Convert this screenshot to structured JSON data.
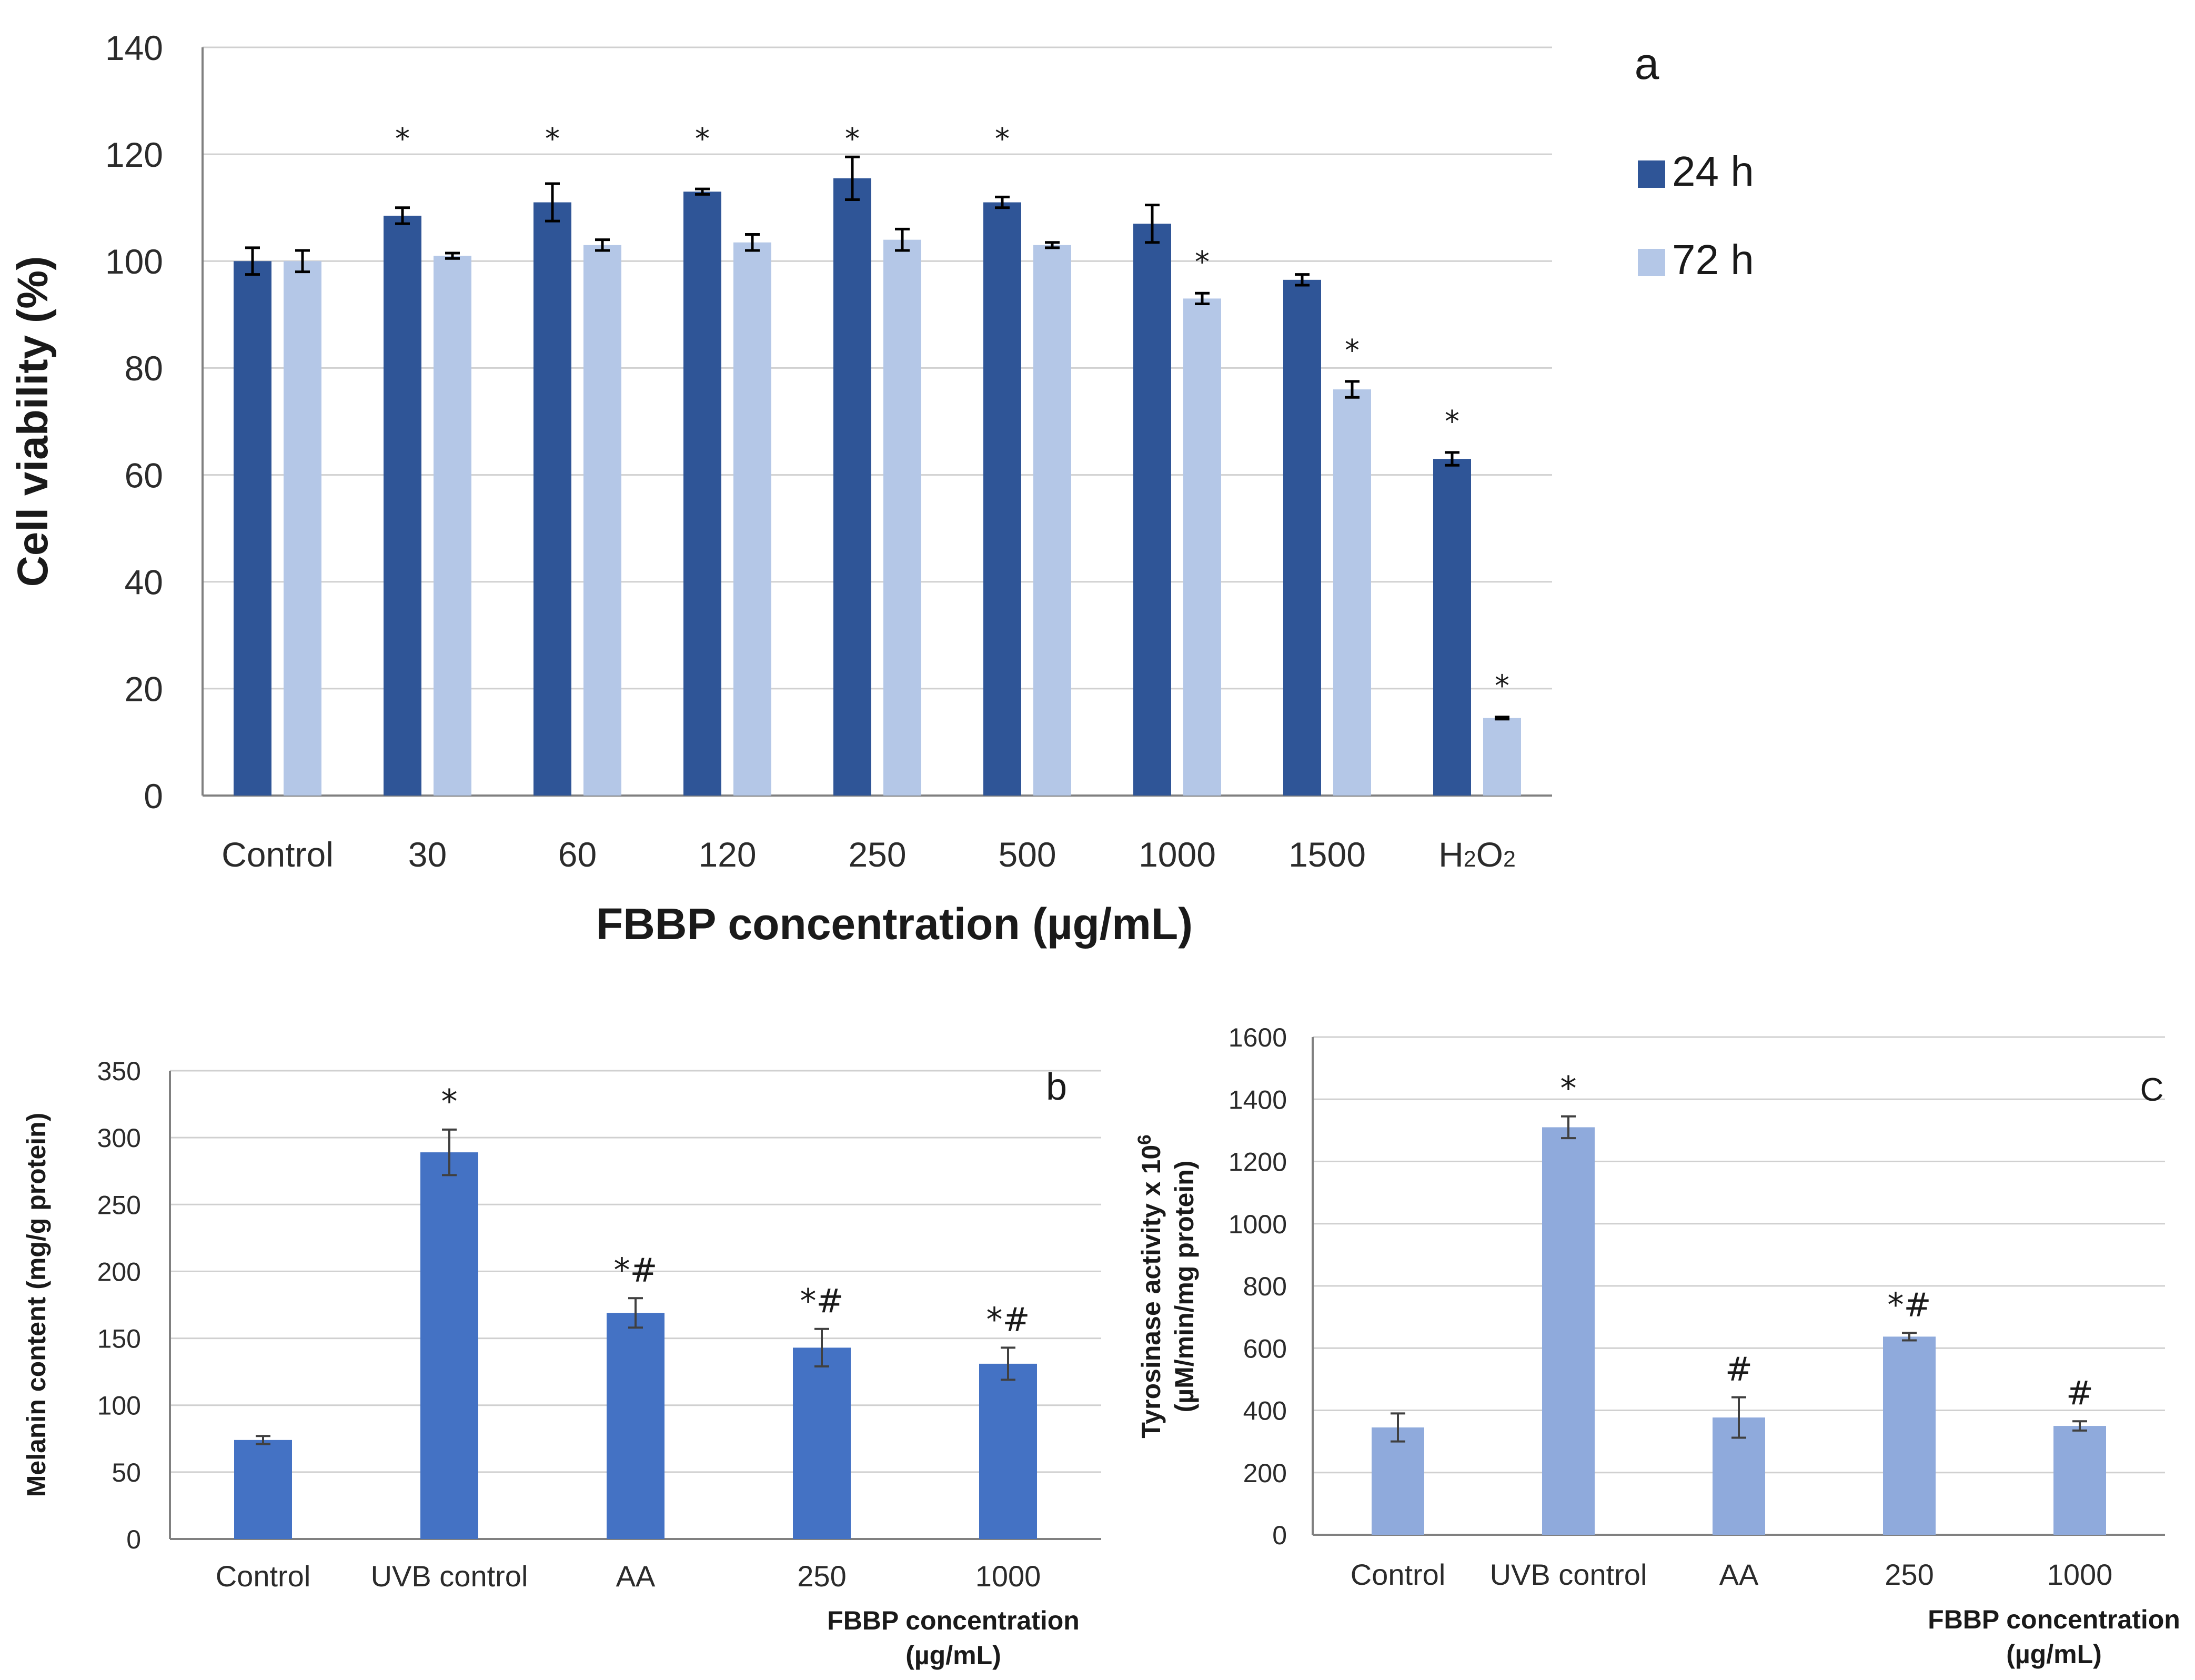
{
  "chart_data": [
    {
      "id": "a",
      "type": "bar",
      "panel_label": "a",
      "xlabel": "FBBP concentration (µg/mL)",
      "ylabel": "Cell viability (%)",
      "ylim": [
        0,
        140
      ],
      "yticks": [
        "0",
        "20",
        "40",
        "60",
        "80",
        "100",
        "120",
        "140"
      ],
      "grid": true,
      "legend_position": "right",
      "categories": [
        {
          "label": "Control"
        },
        {
          "label": "30"
        },
        {
          "label": "60"
        },
        {
          "label": "120"
        },
        {
          "label": "250"
        },
        {
          "label": "500"
        },
        {
          "label": "1000"
        },
        {
          "label": "1500"
        },
        {
          "label": "H",
          "sub1": "2",
          "mid": "O",
          "sub2": "2"
        }
      ],
      "series": [
        {
          "name": "24 h",
          "color": "#2f5597",
          "values": [
            100,
            108.5,
            111,
            113,
            115.5,
            111,
            107,
            96.5,
            63
          ],
          "errors": [
            2.5,
            1.5,
            3.5,
            0.5,
            4,
            1,
            3.5,
            1,
            1.2
          ],
          "markers": [
            "",
            "*",
            "*",
            "*",
            "*",
            "*",
            "",
            "",
            "*"
          ]
        },
        {
          "name": "72 h",
          "color": "#b4c7e7",
          "values": [
            100,
            101,
            103,
            103.5,
            104,
            103,
            93,
            76,
            14.5
          ],
          "errors": [
            2,
            0.5,
            1,
            1.5,
            2,
            0.5,
            1,
            1.5,
            0.2
          ],
          "markers": [
            "",
            "",
            "",
            "",
            "",
            "",
            "*",
            "*",
            "*"
          ]
        }
      ]
    },
    {
      "id": "b",
      "type": "bar",
      "panel_label": "b",
      "xlabel_lines": [
        "FBBP concentration",
        "(µg/mL)"
      ],
      "ylabel": "Melanin content (mg/g protein)",
      "ylim": [
        0,
        350
      ],
      "yticks": [
        "0",
        "50",
        "100",
        "150",
        "200",
        "250",
        "300",
        "350"
      ],
      "grid": true,
      "categories": [
        "Control",
        "UVB control",
        "AA",
        "250",
        "1000"
      ],
      "series": [
        {
          "name": "Melanin content",
          "color": "#4472c4",
          "values": [
            74,
            289,
            169,
            143,
            131
          ],
          "errors": [
            3,
            17,
            11,
            14,
            12
          ],
          "markers": [
            "",
            "*",
            "*#",
            "*#",
            "*#"
          ]
        }
      ]
    },
    {
      "id": "c",
      "type": "bar",
      "panel_label": "C",
      "xlabel_lines": [
        "FBBP concentration",
        "(µg/mL)"
      ],
      "ylabel_lines": [
        "Tyrosinase activity x 10",
        "(µM/min/mg protein)"
      ],
      "ylabel_sup": "6",
      "ylim": [
        0,
        1600
      ],
      "yticks": [
        "0",
        "200",
        "400",
        "600",
        "800",
        "1000",
        "1200",
        "1400",
        "1600"
      ],
      "grid": true,
      "categories": [
        "Control",
        "UVB control",
        "AA",
        "250",
        "1000"
      ],
      "series": [
        {
          "name": "Tyrosinase activity",
          "color": "#8faadc",
          "values": [
            345,
            1310,
            377,
            637,
            350
          ],
          "errors": [
            45,
            35,
            65,
            12,
            15
          ],
          "markers": [
            "",
            "*",
            "#",
            "*#",
            "#"
          ]
        }
      ]
    }
  ]
}
